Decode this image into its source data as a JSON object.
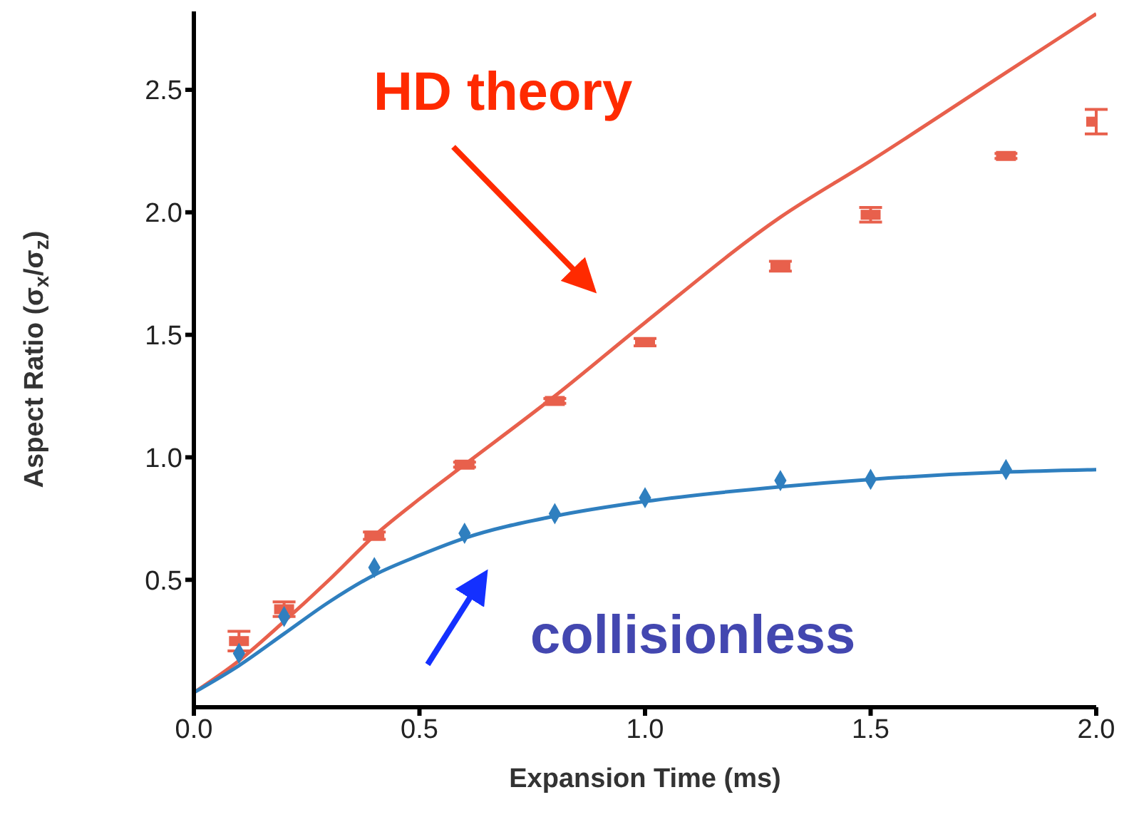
{
  "chart_data": {
    "type": "scatter",
    "xlabel": "Expansion Time (ms)",
    "ylabel": "Aspect Ratio (σ$_{x}$/σ$_{z}$)",
    "xlim": [
      0,
      2.0
    ],
    "xticks": [
      {
        "value": 0,
        "label": "0.0"
      },
      {
        "value": 0.5,
        "label": "0.5"
      },
      {
        "value": 1,
        "label": "1.0"
      },
      {
        "value": 1.5,
        "label": "1.5"
      },
      {
        "value": 2,
        "label": "2.0"
      }
    ],
    "ylim": [
      -0.02,
      2.82
    ],
    "yticks": [
      {
        "value": 0.5,
        "label": "0.5"
      },
      {
        "value": 1,
        "label": "1.0"
      },
      {
        "value": 1.5,
        "label": "1.5"
      },
      {
        "value": 2,
        "label": "2.0"
      },
      {
        "value": 2.5,
        "label": "2.5"
      }
    ],
    "grid": false,
    "legend": false,
    "annotations": [
      "HD theory",
      "collisionless"
    ],
    "series": [
      {
        "type": "line",
        "color": "#e8604c",
        "marker": "none",
        "x": [
          0,
          0.1,
          0.2,
          0.3,
          0.4,
          0.5,
          0.6,
          0.8,
          1.0,
          1.3,
          1.5,
          1.8,
          2.0
        ],
        "values": [
          0.04,
          0.17,
          0.33,
          0.5,
          0.68,
          0.83,
          0.97,
          1.25,
          1.55,
          1.98,
          2.21,
          2.57,
          2.81
        ]
      },
      {
        "type": "line",
        "color": "#2f7fbf",
        "marker": "none",
        "x": [
          0,
          0.1,
          0.2,
          0.3,
          0.4,
          0.5,
          0.6,
          0.8,
          1.0,
          1.3,
          1.5,
          1.8,
          2.0
        ],
        "values": [
          0.04,
          0.15,
          0.28,
          0.41,
          0.52,
          0.6,
          0.67,
          0.76,
          0.82,
          0.88,
          0.91,
          0.94,
          0.95
        ]
      },
      {
        "color": "#e8604c",
        "marker": "square",
        "x": [
          0.1,
          0.2,
          0.4,
          0.6,
          0.8,
          1.0,
          1.3,
          1.5,
          1.8,
          2.0
        ],
        "values": [
          0.25,
          0.38,
          0.68,
          0.97,
          1.23,
          1.47,
          1.78,
          1.99,
          2.23,
          2.37
        ],
        "errors": [
          0.04,
          0.03,
          0.015,
          0.01,
          0.01,
          0.015,
          0.02,
          0.03,
          0.01,
          0.05
        ]
      },
      {
        "color": "#2f7fbf",
        "marker": "diamond",
        "x": [
          0.1,
          0.2,
          0.4,
          0.6,
          0.8,
          1.0,
          1.3,
          1.5,
          1.8
        ],
        "values": [
          0.2,
          0.35,
          0.55,
          0.69,
          0.77,
          0.835,
          0.905,
          0.91,
          0.95
        ]
      }
    ]
  }
}
